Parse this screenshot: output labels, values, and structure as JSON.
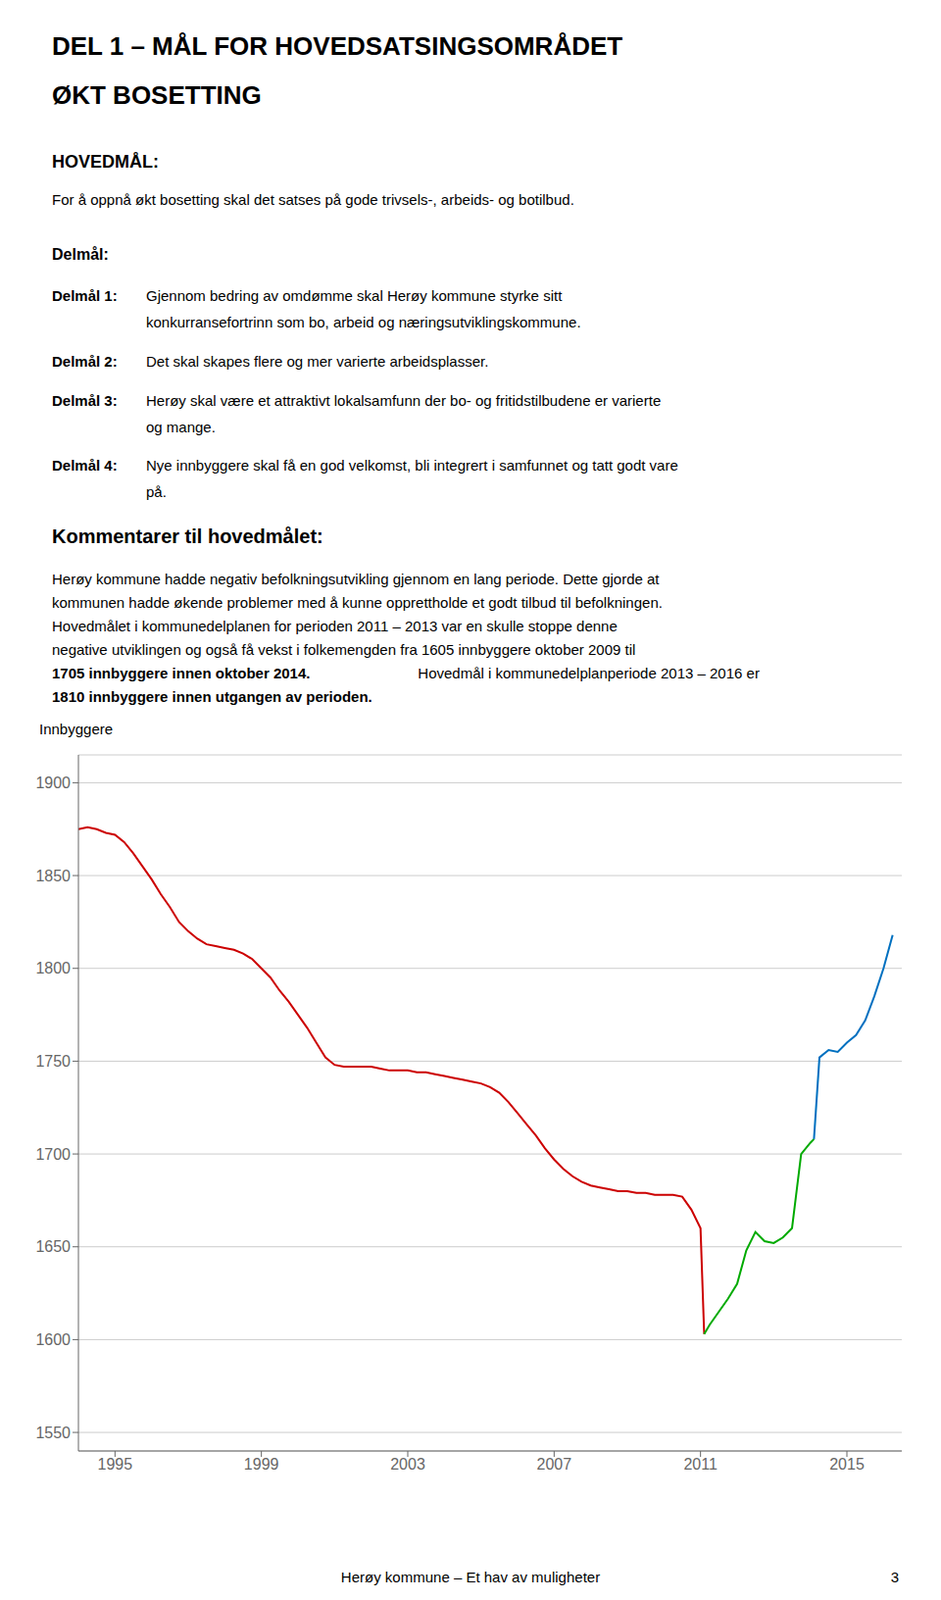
{
  "chart_data": {
    "type": "line",
    "title": "DEL 1 – MÅL FOR HOVEDSATSINGSOMRÅDET",
    "subtitle": "ØKT BOSETTING",
    "annotations": [
      "HOVEDMÅL:",
      "For å oppnå økt bosetting skal det satses på gode trivsels-, arbeids- og botilbud.",
      "Delmål:",
      "Delmål 1:",
      "Gjennom bedring av omdømme skal Herøy kommune styrke sitt",
      "konkurransefortrinn som bo, arbeid og næringsutviklingskommune.",
      "Delmål 2:",
      "Det skal skapes flere og mer varierte arbeidsplasser.",
      "Delmål 3:",
      "Herøy skal være et attraktivt lokalsamfunn der bo- og fritidstilbudene er varierte",
      "og mange.",
      "Delmål 4:",
      "Nye innbyggere skal få en god velkomst, bli integrert i samfunnet og tatt godt vare",
      "på.",
      "Kommentarer til hovedmålet:",
      "Herøy kommune hadde negativ befolkningsutvikling gjennom en lang periode. Dette gjorde at",
      "kommunen hadde økende problemer med å kunne opprettholde et godt tilbud til befolkningen.",
      "Hovedmålet i kommunedelplanen for perioden 2011 – 2013 var en skulle stoppe denne",
      "negative utviklingen og også få vekst i folkemengden fra 1605 innbyggere oktober 2009 til",
      "1705 innbyggere innen oktober 2014.",
      "  Hovedmål i kommunedelplanperiode 2013 – 2016 er",
      "1810 innbyggere innen utgangen av perioden.",
      "Herøy kommune – Et hav av muligheter",
      "3"
    ],
    "ylabel": "Innbyggere",
    "xlim": [
      1994.0,
      2016.5
    ],
    "xticks": [
      1995,
      1999,
      2003,
      2007,
      2011,
      2015
    ],
    "ylim": [
      1540,
      1915
    ],
    "yticks": [
      1550,
      1600,
      1650,
      1700,
      1750,
      1800,
      1850,
      1900
    ],
    "grid": true,
    "series": [
      {
        "color": "#cc0000",
        "x": [
          1994,
          1994.25,
          1994.5,
          1994.75,
          1995,
          1995.25,
          1995.5,
          1995.75,
          1996,
          1996.25,
          1996.5,
          1996.75,
          1997,
          1997.25,
          1997.5,
          1997.75,
          1998,
          1998.25,
          1998.5,
          1998.75,
          1999,
          1999.25,
          1999.5,
          1999.75,
          2000,
          2000.25,
          2000.5,
          2000.75,
          2001,
          2001.25,
          2001.5,
          2001.75,
          2002,
          2002.25,
          2002.5,
          2002.75,
          2003,
          2003.25,
          2003.5,
          2003.75,
          2004,
          2004.25,
          2004.5,
          2004.75,
          2005,
          2005.25,
          2005.5,
          2005.75,
          2006,
          2006.25,
          2006.5,
          2006.75,
          2007,
          2007.25,
          2007.5,
          2007.75,
          2008,
          2008.25,
          2008.5,
          2008.75,
          2009,
          2009.25,
          2009.5,
          2009.75,
          2010,
          2010.25,
          2010.5,
          2010.75,
          2011,
          2011.1
        ],
        "values": [
          1875,
          1876,
          1875,
          1873,
          1872,
          1868,
          1862,
          1855,
          1848,
          1840,
          1833,
          1825,
          1820,
          1816,
          1813,
          1812,
          1811,
          1810,
          1808,
          1805,
          1800,
          1795,
          1788,
          1782,
          1775,
          1768,
          1760,
          1752,
          1748,
          1747,
          1747,
          1747,
          1747,
          1746,
          1745,
          1745,
          1745,
          1744,
          1744,
          1743,
          1742,
          1741,
          1740,
          1739,
          1738,
          1736,
          1733,
          1728,
          1722,
          1716,
          1710,
          1703,
          1697,
          1692,
          1688,
          1685,
          1683,
          1682,
          1681,
          1680,
          1680,
          1679,
          1679,
          1678,
          1678,
          1678,
          1677,
          1670,
          1660,
          1603
        ]
      },
      {
        "color": "#00aa00",
        "x": [
          2011.1,
          2011.25,
          2011.5,
          2011.75,
          2012,
          2012.25,
          2012.5,
          2012.75,
          2013,
          2013.25,
          2013.5,
          2013.75,
          2014,
          2014.1
        ],
        "values": [
          1603,
          1608,
          1615,
          1622,
          1630,
          1648,
          1658,
          1653,
          1652,
          1655,
          1660,
          1700,
          1706,
          1708
        ]
      },
      {
        "color": "#0070c0",
        "x": [
          2014.1,
          2014.25,
          2014.5,
          2014.75,
          2015,
          2015.25,
          2015.5,
          2015.75,
          2016,
          2016.25
        ],
        "values": [
          1708,
          1752,
          1756,
          1755,
          1760,
          1764,
          1772,
          1785,
          1800,
          1818
        ]
      }
    ]
  }
}
